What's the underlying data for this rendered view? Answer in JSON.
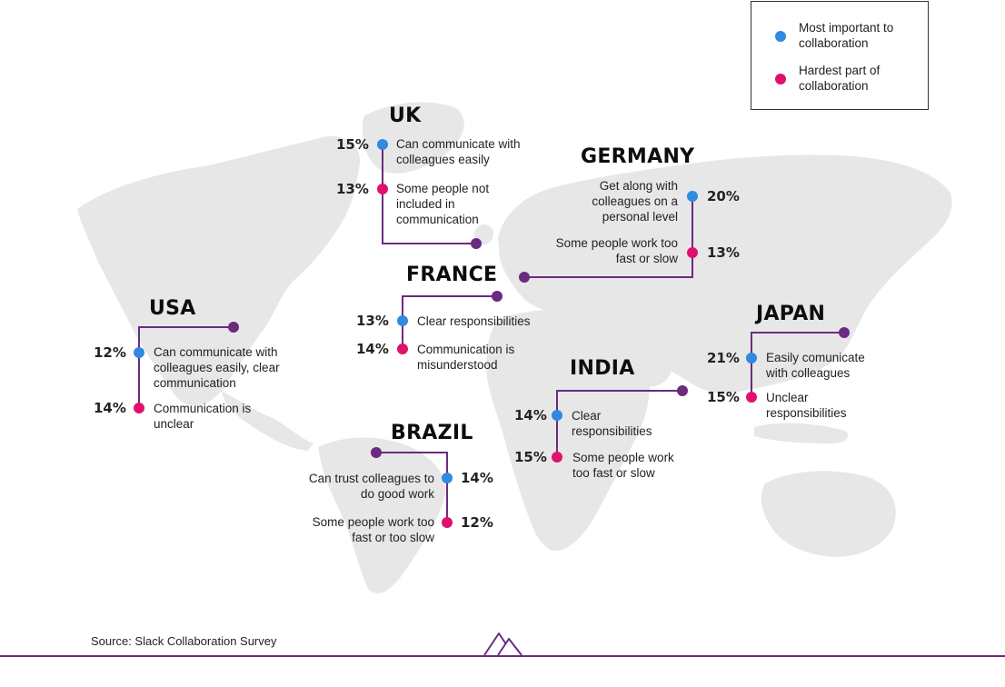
{
  "colors": {
    "blue": "#2f8ae0",
    "pink": "#e0106f",
    "purple": "#6b2b80",
    "map": "#e7e7e7"
  },
  "legend": {
    "important": "Most important to collaboration",
    "hardest": "Hardest part of collaboration"
  },
  "countries": {
    "uk": {
      "name": "UK",
      "important": {
        "pct": "15%",
        "label": "Can communicate with colleagues easily"
      },
      "hardest": {
        "pct": "13%",
        "label": "Some people not included in communication"
      }
    },
    "germany": {
      "name": "GERMANY",
      "important": {
        "pct": "20%",
        "label": "Get along with colleagues on a personal level"
      },
      "hardest": {
        "pct": "13%",
        "label": "Some people work too fast or slow"
      }
    },
    "france": {
      "name": "FRANCE",
      "important": {
        "pct": "13%",
        "label": "Clear responsibilities"
      },
      "hardest": {
        "pct": "14%",
        "label": "Communication is misunderstood"
      }
    },
    "usa": {
      "name": "USA",
      "important": {
        "pct": "12%",
        "label": "Can communicate with colleagues easily, clear communication"
      },
      "hardest": {
        "pct": "14%",
        "label": "Communication is unclear"
      }
    },
    "japan": {
      "name": "JAPAN",
      "important": {
        "pct": "21%",
        "label": "Easily comunicate with colleagues"
      },
      "hardest": {
        "pct": "15%",
        "label": "Unclear responsibilities"
      }
    },
    "india": {
      "name": "INDIA",
      "important": {
        "pct": "14%",
        "label": "Clear responsibilities"
      },
      "hardest": {
        "pct": "15%",
        "label": "Some people work too fast or slow"
      }
    },
    "brazil": {
      "name": "BRAZIL",
      "important": {
        "pct": "14%",
        "label": "Can trust colleagues to do good work"
      },
      "hardest": {
        "pct": "12%",
        "label": "Some people work too fast or too slow"
      }
    }
  },
  "source": "Source: Slack Collaboration Survey"
}
